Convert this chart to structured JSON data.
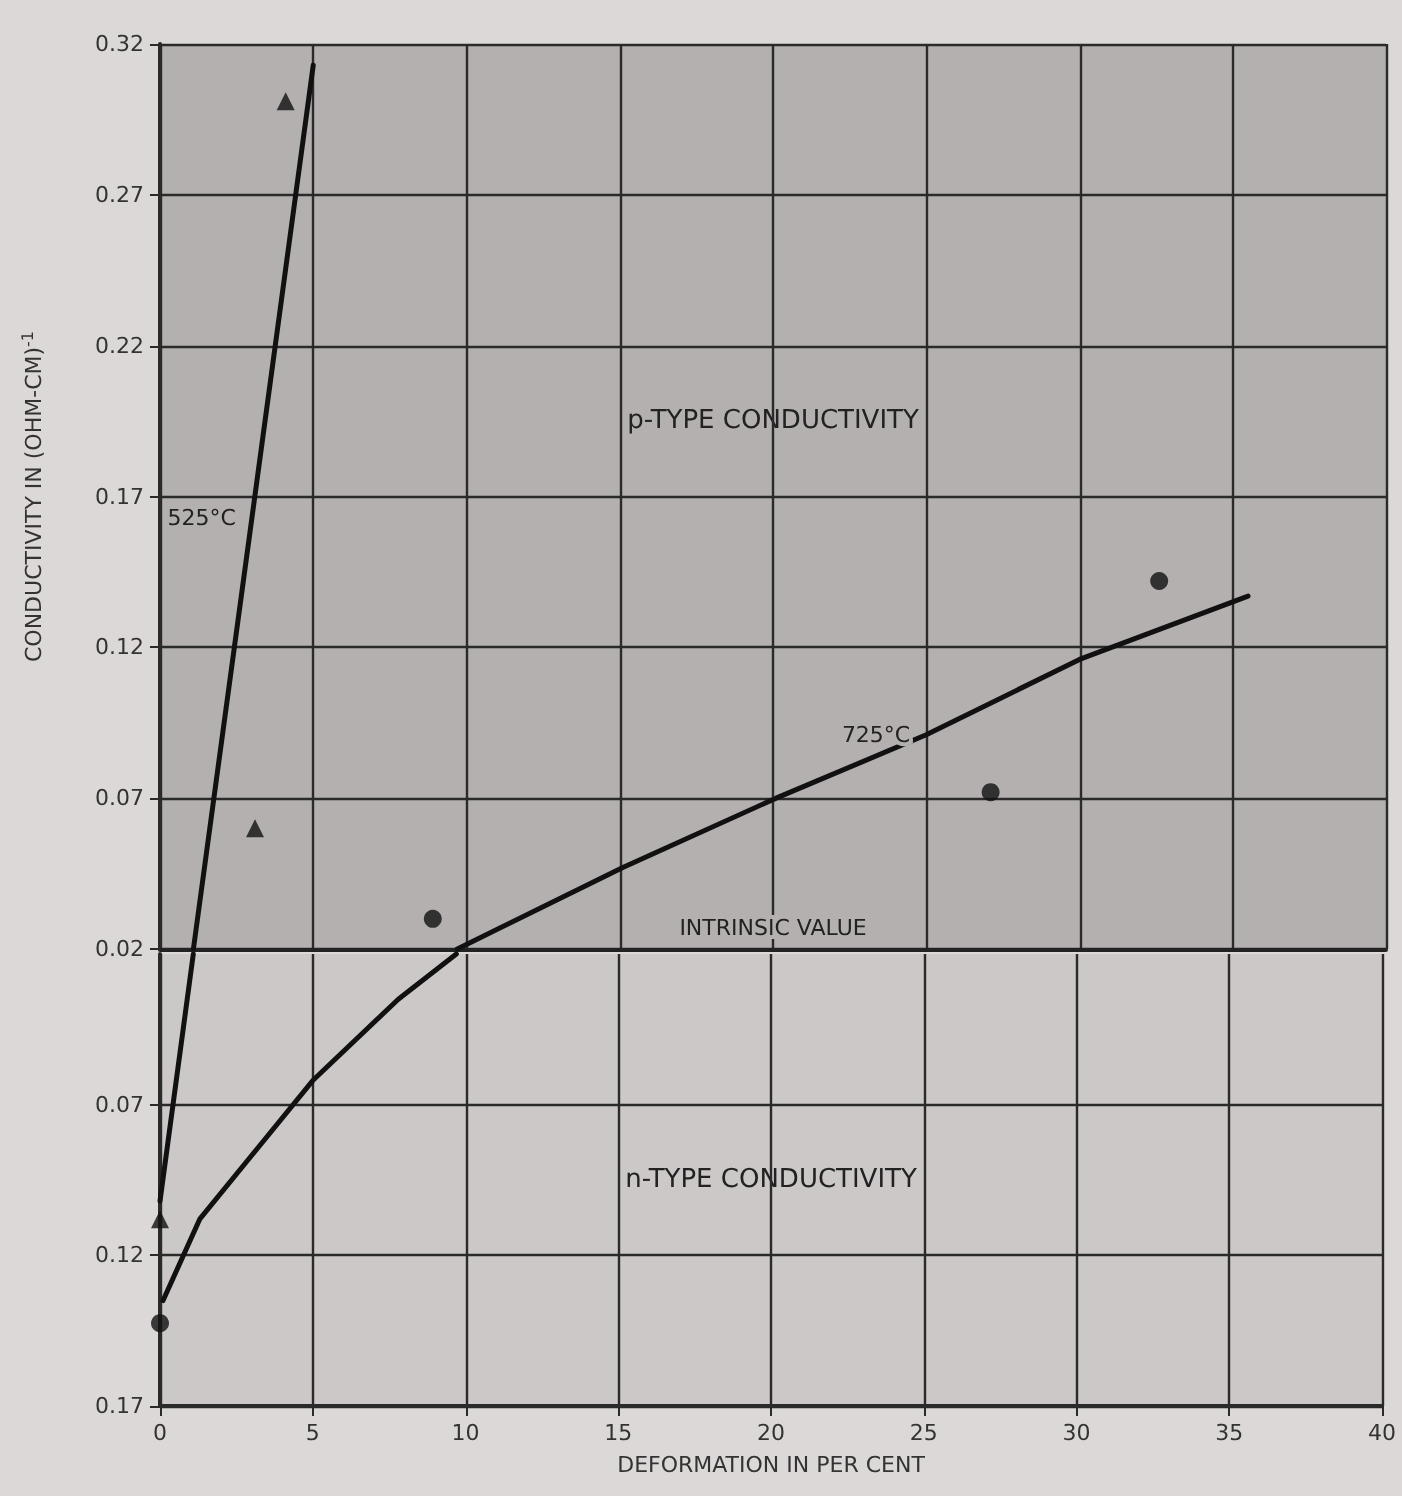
{
  "chart_data": [
    {
      "type": "scatter",
      "ylabel": "CONDUCTIVITY IN (OHM-CM)$^{-1}$",
      "xlim": [
        0,
        40
      ],
      "xticks": [
        0,
        5,
        10,
        15,
        20,
        25,
        30,
        35,
        40
      ],
      "ylim": [
        0.02,
        0.32
      ],
      "yticks": [
        0.02,
        0.07,
        0.12,
        0.17,
        0.22,
        0.27,
        0.32
      ],
      "tick_labels": "y",
      "grid": true,
      "series": [
        {
          "marker": "triangle",
          "color": "#111111",
          "x": [
            4.1,
            3.1
          ],
          "values": [
            0.301,
            0.06
          ]
        },
        {
          "type": "line",
          "name": "525°C",
          "marker": "none",
          "line_style": "solid",
          "color": "#111111",
          "x": [
            1.09,
            3,
            5
          ],
          "values": [
            0.02,
            0.163,
            0.313
          ]
        },
        {
          "marker": "circle",
          "color": "#111111",
          "x": [
            8.9,
            27.1,
            32.6
          ],
          "values": [
            0.03,
            0.072,
            0.142
          ]
        },
        {
          "type": "line",
          "name": "725°C",
          "marker": "none",
          "line_style": "solid",
          "color": "#111111",
          "x": [
            9.7,
            15.1,
            20.1,
            25,
            30,
            35.5
          ],
          "values": [
            0.02,
            0.047,
            0.07,
            0.091,
            0.116,
            0.137
          ]
        }
      ],
      "bands": [
        {
          "axis": "y",
          "from": 0.02,
          "to": 0.32,
          "label": "p-TYPE CONDUCTIVITY",
          "color": "#b5b0b0"
        }
      ],
      "ref_lines": [
        {
          "axis": "y",
          "value": 0.02,
          "label": "INTRINSIC VALUE",
          "color": "#222222"
        }
      ]
    },
    {
      "type": "scatter",
      "xlabel": "DEFORMATION IN PER CENT",
      "xlim": [
        0,
        40
      ],
      "xticks": [
        0,
        5,
        10,
        15,
        20,
        25,
        30,
        35,
        40
      ],
      "ylim": [
        0.17,
        0.02
      ],
      "yticks": [
        0.07,
        0.12,
        0.17
      ],
      "grid": true,
      "series": [
        {
          "marker": "triangle",
          "color": "#111111",
          "x": [
            0
          ],
          "values": [
            0.108
          ]
        },
        {
          "type": "line",
          "marker": "none",
          "line_style": "solid",
          "color": "#111111",
          "x": [
            0,
            1.09
          ],
          "values": [
            0.102,
            0.02
          ]
        },
        {
          "marker": "circle",
          "color": "#111111",
          "x": [
            0
          ],
          "values": [
            0.1425
          ]
        },
        {
          "type": "line",
          "marker": "none",
          "line_style": "solid",
          "color": "#111111",
          "x": [
            0.1,
            1.3,
            5,
            7.8,
            9.7
          ],
          "values": [
            0.135,
            0.108,
            0.062,
            0.035,
            0.02
          ]
        }
      ],
      "bands": [
        {
          "axis": "y",
          "from": 0.17,
          "to": 0.02,
          "label": "n-TYPE CONDUCTIVITY",
          "color": "#cdc8c8"
        }
      ]
    }
  ]
}
